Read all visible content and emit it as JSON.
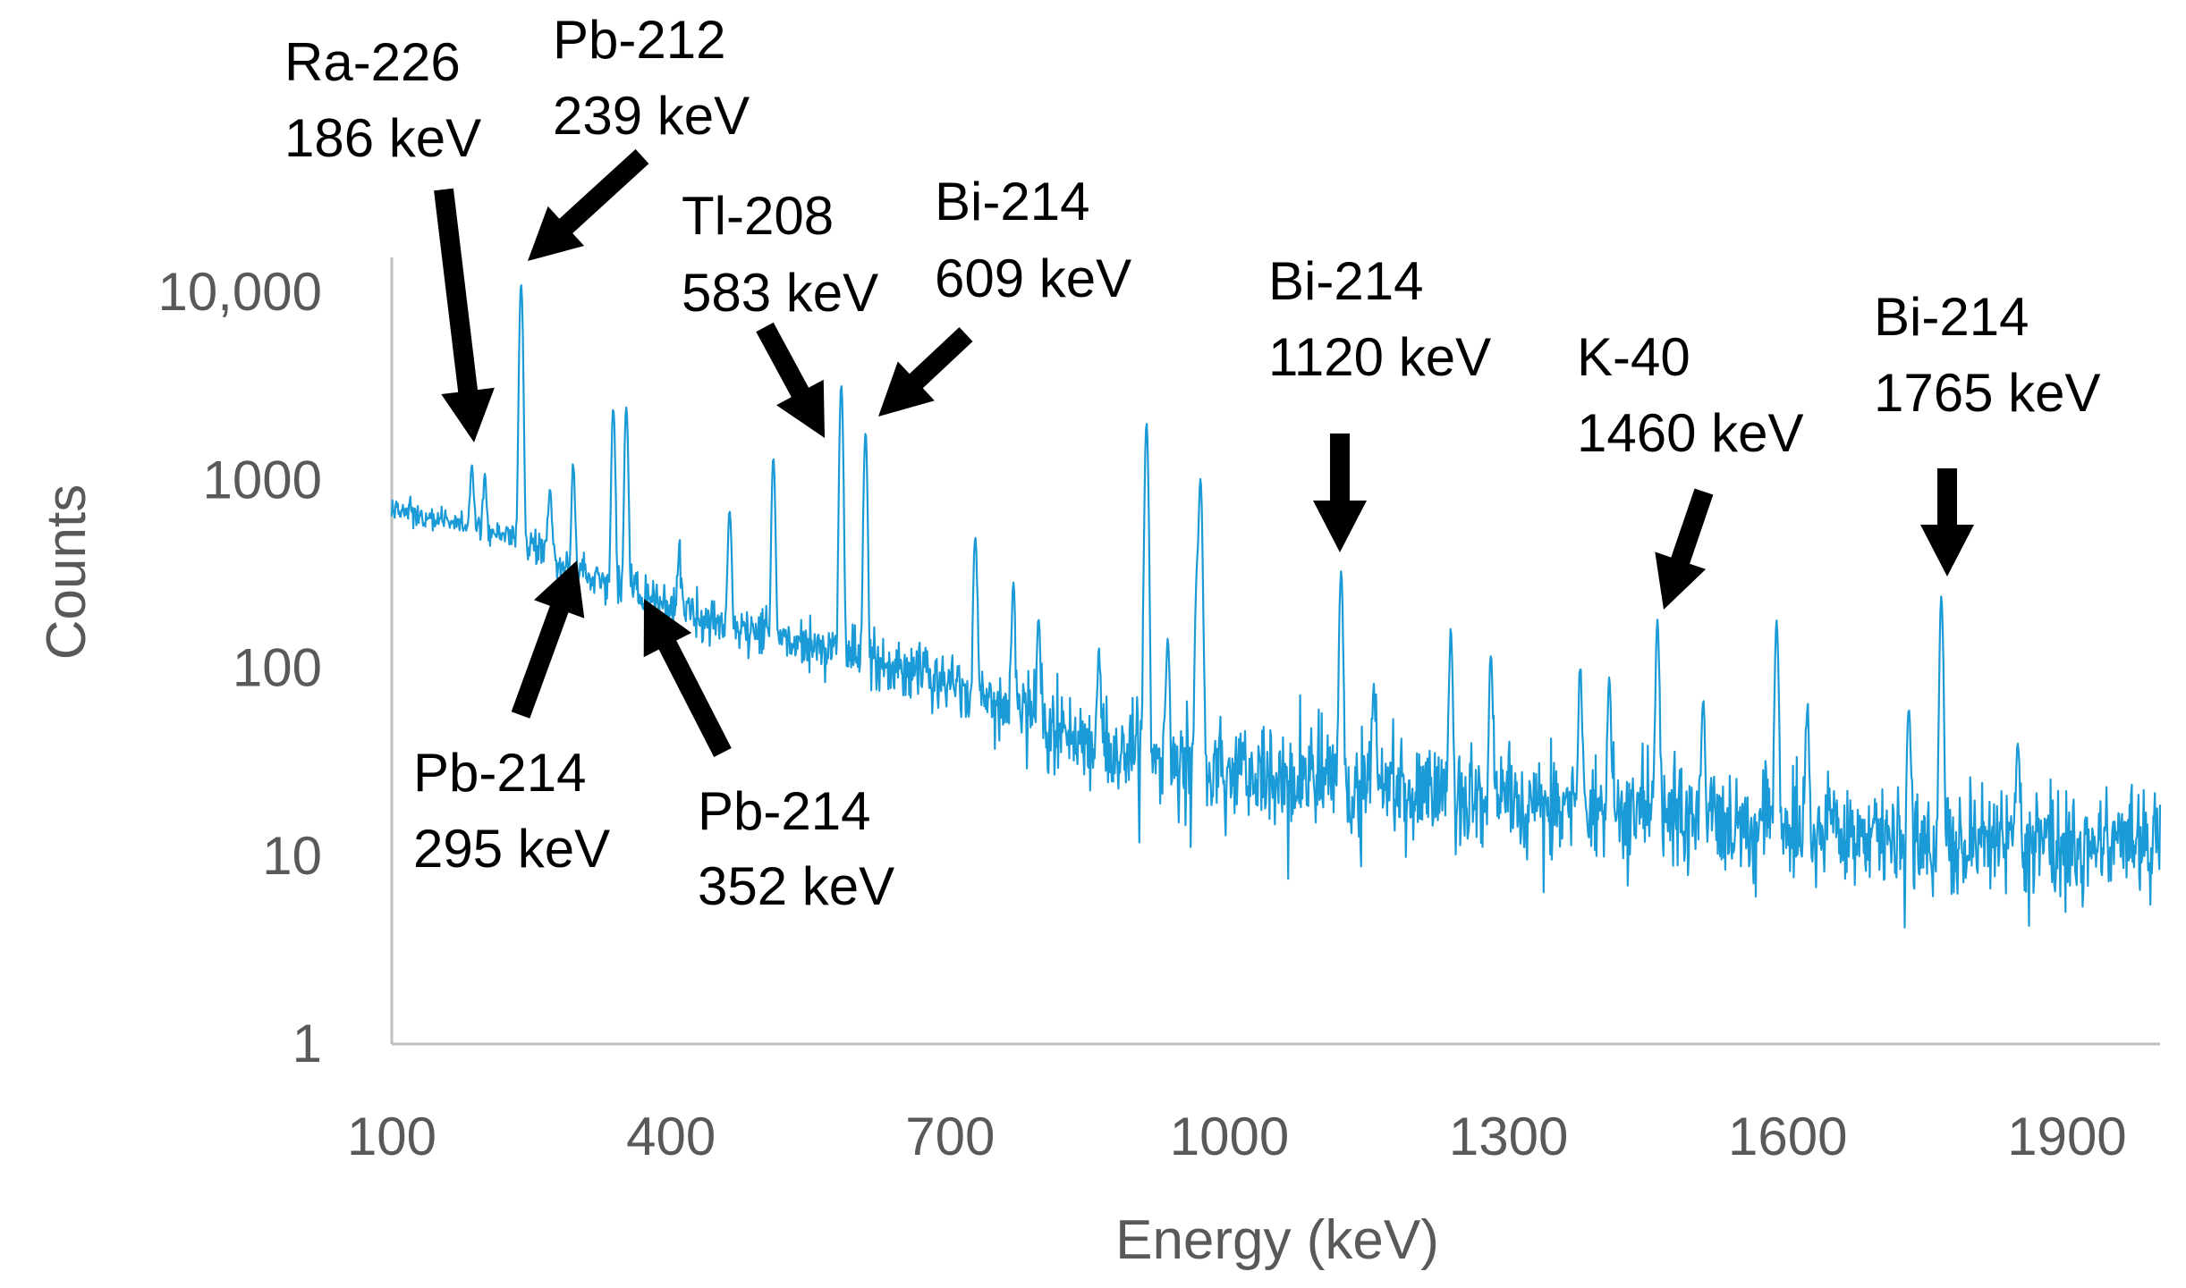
{
  "chart_data": {
    "type": "line",
    "title": "",
    "xlabel": "Energy (keV)",
    "ylabel": "Counts",
    "xlim": [
      100,
      2000
    ],
    "ylim": [
      1,
      20000
    ],
    "yscale": "log",
    "grid": false,
    "line_color": "#1a9bd7",
    "x_ticks": [
      {
        "value": 100,
        "label": "100"
      },
      {
        "value": 400,
        "label": "400"
      },
      {
        "value": 700,
        "label": "700"
      },
      {
        "value": 1000,
        "label": "1000"
      },
      {
        "value": 1300,
        "label": "1300"
      },
      {
        "value": 1600,
        "label": "1600"
      },
      {
        "value": 1900,
        "label": "1900"
      }
    ],
    "y_ticks": [
      {
        "value": 10000,
        "label": "10,000"
      },
      {
        "value": 1000,
        "label": "1000"
      },
      {
        "value": 100,
        "label": "100"
      },
      {
        "value": 10,
        "label": "10"
      },
      {
        "value": 1,
        "label": "1"
      }
    ],
    "baseline": [
      [
        100,
        700
      ],
      [
        150,
        620
      ],
      [
        200,
        540
      ],
      [
        250,
        460
      ],
      [
        300,
        330
      ],
      [
        350,
        260
      ],
      [
        400,
        210
      ],
      [
        450,
        175
      ],
      [
        500,
        150
      ],
      [
        550,
        130
      ],
      [
        600,
        115
      ],
      [
        650,
        100
      ],
      [
        700,
        85
      ],
      [
        750,
        68
      ],
      [
        800,
        52
      ],
      [
        850,
        42
      ],
      [
        900,
        35
      ],
      [
        950,
        30
      ],
      [
        1000,
        28
      ],
      [
        1100,
        25
      ],
      [
        1200,
        22
      ],
      [
        1300,
        20
      ],
      [
        1400,
        18
      ],
      [
        1500,
        16
      ],
      [
        1600,
        14
      ],
      [
        1700,
        13
      ],
      [
        1800,
        12
      ],
      [
        1900,
        12
      ],
      [
        2000,
        12
      ]
    ],
    "peaks": [
      {
        "energy": 186,
        "counts": 1200
      },
      {
        "energy": 200,
        "counts": 1100
      },
      {
        "energy": 239,
        "counts": 11000
      },
      {
        "energy": 270,
        "counts": 900
      },
      {
        "energy": 295,
        "counts": 1200
      },
      {
        "energy": 338,
        "counts": 2400
      },
      {
        "energy": 352,
        "counts": 2500
      },
      {
        "energy": 409,
        "counts": 450
      },
      {
        "energy": 463,
        "counts": 700
      },
      {
        "energy": 510,
        "counts": 1300
      },
      {
        "energy": 583,
        "counts": 3200
      },
      {
        "energy": 609,
        "counts": 1800
      },
      {
        "energy": 727,
        "counts": 500
      },
      {
        "energy": 768,
        "counts": 280
      },
      {
        "energy": 795,
        "counts": 180
      },
      {
        "energy": 860,
        "counts": 120
      },
      {
        "energy": 911,
        "counts": 2000
      },
      {
        "energy": 934,
        "counts": 150
      },
      {
        "energy": 965,
        "counts": 300
      },
      {
        "energy": 969,
        "counts": 1000
      },
      {
        "energy": 1120,
        "counts": 330
      },
      {
        "energy": 1155,
        "counts": 80
      },
      {
        "energy": 1238,
        "counts": 150
      },
      {
        "energy": 1281,
        "counts": 120
      },
      {
        "energy": 1377,
        "counts": 100
      },
      {
        "energy": 1408,
        "counts": 90
      },
      {
        "energy": 1460,
        "counts": 180
      },
      {
        "energy": 1509,
        "counts": 70
      },
      {
        "energy": 1588,
        "counts": 180
      },
      {
        "energy": 1621,
        "counts": 60
      },
      {
        "energy": 1730,
        "counts": 60
      },
      {
        "energy": 1765,
        "counts": 240
      },
      {
        "energy": 1847,
        "counts": 40
      }
    ],
    "annotations": [
      {
        "name": "ra226-186",
        "line1": "Ra-226",
        "line2": "186 keV",
        "energy": 186
      },
      {
        "name": "pb212-239",
        "line1": "Pb-212",
        "line2": "239 keV",
        "energy": 239
      },
      {
        "name": "tl208-583",
        "line1": "Tl-208",
        "line2": "583 keV",
        "energy": 583
      },
      {
        "name": "bi214-609",
        "line1": "Bi-214",
        "line2": "609 keV",
        "energy": 609
      },
      {
        "name": "bi214-1120",
        "line1": "Bi-214",
        "line2": "1120 keV",
        "energy": 1120
      },
      {
        "name": "k40-1460",
        "line1": "K-40",
        "line2": "1460 keV",
        "energy": 1460
      },
      {
        "name": "bi214-1765",
        "line1": "Bi-214",
        "line2": "1765 keV",
        "energy": 1765
      },
      {
        "name": "pb214-295",
        "line1": "Pb-214",
        "line2": "295 keV",
        "energy": 295
      },
      {
        "name": "pb214-352",
        "line1": "Pb-214",
        "line2": "352 keV",
        "energy": 352
      }
    ]
  }
}
